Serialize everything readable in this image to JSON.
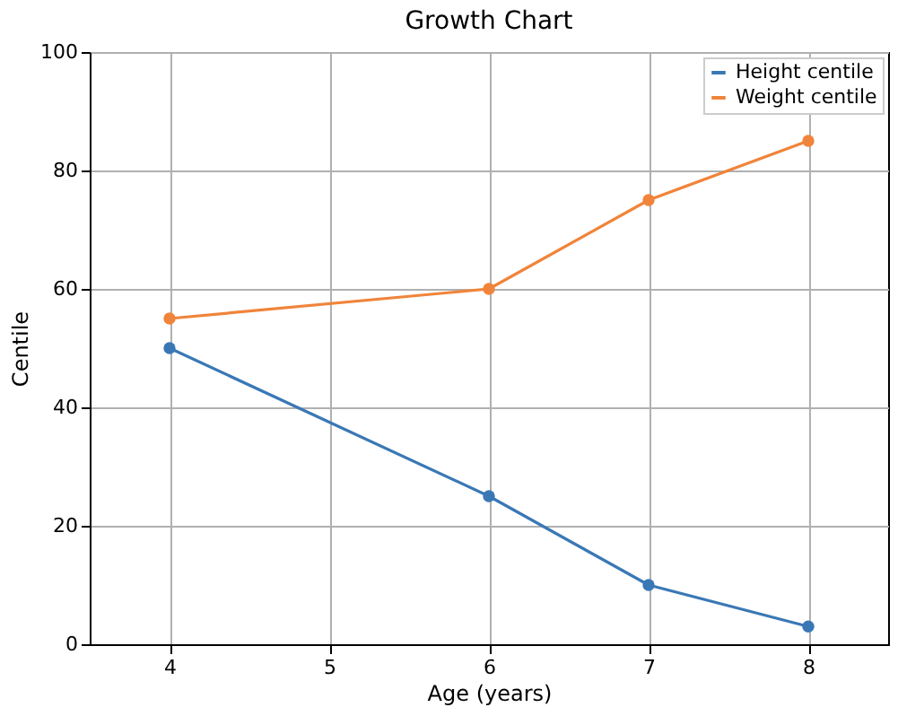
{
  "chart_data": {
    "type": "line",
    "title": "Growth Chart",
    "xlabel": "Age (years)",
    "ylabel": "Centile",
    "x": [
      4,
      6,
      7,
      8
    ],
    "series": [
      {
        "name": "Height centile",
        "color": "#3a78b5",
        "values": [
          50,
          25,
          10,
          3
        ]
      },
      {
        "name": "Weight centile",
        "color": "#f0843a",
        "values": [
          55,
          60,
          75,
          85
        ]
      }
    ],
    "xlim": [
      3.5,
      8.5
    ],
    "xticks": [
      4,
      5,
      6,
      7,
      8
    ],
    "ylim": [
      0,
      100
    ],
    "yticks": [
      0,
      20,
      40,
      60,
      80,
      100
    ],
    "grid": true,
    "legend": "top right",
    "marker": "circle",
    "line_style": "solid"
  }
}
